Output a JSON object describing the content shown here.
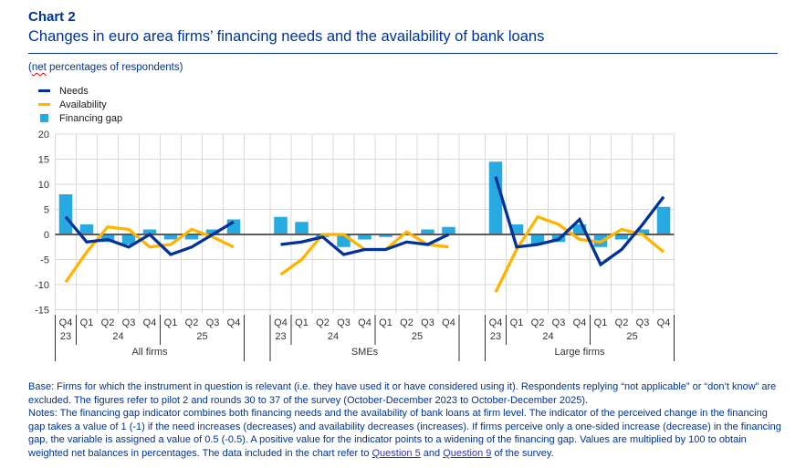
{
  "header": {
    "chart_label": "Chart 2",
    "title": "Changes in euro area firms’ financing needs and the availability of bank loans",
    "units_prefix": "(",
    "units_word": "net",
    "units_suffix": " percentages of respondents)"
  },
  "legend": {
    "items": [
      {
        "label": "Needs",
        "swatch": "line",
        "color": "#003299"
      },
      {
        "label": "Availability",
        "swatch": "line",
        "color": "#FFB400"
      },
      {
        "label": "Financing gap",
        "swatch": "square",
        "color": "#27AAE1"
      }
    ]
  },
  "chart_data": {
    "type": "combo bar+line, 3 panels",
    "title": "Changes in euro area firms’ financing needs and the availability of bank loans",
    "ylabel": "net percentages of respondents",
    "y_axis": {
      "min": -15,
      "max": 20,
      "ticks": [
        20,
        15,
        10,
        5,
        0,
        -5,
        -10,
        -15
      ],
      "grid": true
    },
    "quarters": [
      "Q4",
      "Q1",
      "Q2",
      "Q3",
      "Q4",
      "Q1",
      "Q2",
      "Q3",
      "Q4"
    ],
    "year_groups": [
      {
        "label": "23",
        "first_quarter": 0,
        "span": 1
      },
      {
        "label": "24",
        "first_quarter": 1,
        "span": 4
      },
      {
        "label": "25",
        "first_quarter": 5,
        "span": 4
      }
    ],
    "series_names": {
      "bar": "Financing gap",
      "line1": "Needs",
      "line2": "Availability"
    },
    "panels": [
      {
        "label": "All firms",
        "financing_gap": [
          8,
          2,
          -1.5,
          -2,
          1,
          -1,
          -1,
          1,
          3
        ],
        "needs": [
          3.5,
          -1.5,
          -1,
          -2.5,
          0,
          -4,
          -2.5,
          0,
          2.5
        ],
        "availability": [
          -9.5,
          -3.5,
          1.5,
          1,
          -2.5,
          -2,
          1,
          -0.5,
          -2.5
        ]
      },
      {
        "label": "SMEs",
        "financing_gap": [
          3.5,
          2.5,
          -0.5,
          -2.5,
          -1,
          -0.5,
          0,
          1,
          1.5
        ],
        "needs": [
          -2,
          -1.5,
          -0.5,
          -4,
          -3,
          -3,
          -1.5,
          -2,
          0
        ],
        "availability": [
          -8,
          -5,
          0,
          0,
          -3,
          -3,
          0.5,
          -2,
          -2.5
        ]
      },
      {
        "label": "Large firms",
        "financing_gap": [
          14.5,
          2,
          -2,
          -1.5,
          2,
          -2.5,
          -1,
          1,
          5.5
        ],
        "needs": [
          11.5,
          -2.5,
          -2,
          -1,
          3,
          -6,
          -3,
          2,
          7.5
        ],
        "availability": [
          -11.5,
          -3,
          3.5,
          2,
          -1,
          -1.5,
          1,
          0,
          -3.5
        ]
      }
    ],
    "colors": {
      "needs": "#003299",
      "availability": "#FFB400",
      "financing_gap": "#27AAE1",
      "grid": "#D9D9D9",
      "zero_line": "#5B5B5B",
      "axis_text": "#333333"
    }
  },
  "footnotes": {
    "base": "Base: Firms for which the instrument in question is relevant (i.e. they have used it or have considered using it). Respondents replying “not applicable” or “don’t know” are excluded. The figures refer to pilot 2 and rounds 30 to 37 of the survey (October-December 2023 to October-December 2025).",
    "notes_text": "Notes: The financing gap indicator combines both financing needs and the availability of bank loans at firm level. The indicator of the perceived change in the financing gap takes a value of 1 (-1) if the need increases (decreases) and availability decreases (increases). If firms perceive only a one-sided increase (decrease) in the financing gap, the variable is assigned a value of 0.5 (-0.5). A positive value for the indicator points to a widening of the financing gap. Values are multiplied by 100 to obtain weighted net balances in percentages. The data included in the chart refer to",
    "link1": "Question 5",
    "and_word": "and",
    "link2": "Question 9",
    "tail": "of the survey."
  }
}
